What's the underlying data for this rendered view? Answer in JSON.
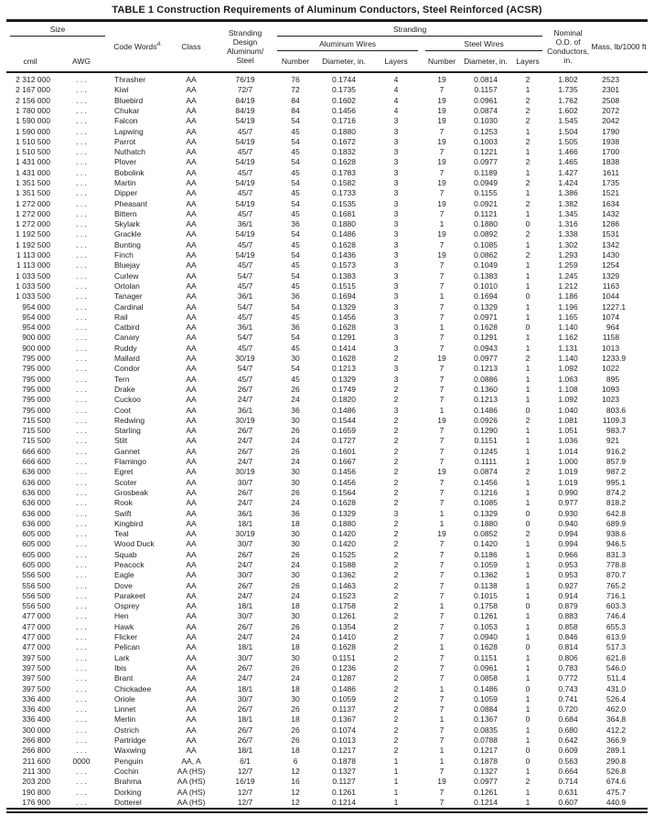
{
  "title": "TABLE 1 Construction Requirements of Aluminum Conductors, Steel Reinforced (ACSR)",
  "header": {
    "size": "Size",
    "cmil": "cmil",
    "awg": "AWG",
    "code_words": "Code Words",
    "code_words_sup": "A",
    "class_label": "Class",
    "stranding_design": "Stranding Design Aluminum/ Steel",
    "stranding": "Stranding",
    "aluminum_wires": "Aluminum Wires",
    "steel_wires": "Steel Wires",
    "number": "Number",
    "diameter": "Diameter, in.",
    "layers": "Layers",
    "nominal_od": "Nominal O.D. of Conductors, in.",
    "mass": "Mass, lb/1000 ft"
  },
  "rows": [
    [
      "2 312 000",
      ". . .",
      "Thrasher",
      "AA",
      "76/19",
      "76",
      "0.1744",
      "4",
      "19",
      "0.0814",
      "2",
      "1.802",
      "2523"
    ],
    [
      "2 167 000",
      ". . .",
      "Kiwi",
      "AA",
      "72/7",
      "72",
      "0.1735",
      "4",
      "7",
      "0.1157",
      "1",
      "1.735",
      "2301"
    ],
    [
      "2 156 000",
      ". . .",
      "Bluebird",
      "AA",
      "84/19",
      "84",
      "0.1602",
      "4",
      "19",
      "0.0961",
      "2",
      "1.762",
      "2508"
    ],
    [
      "1 780 000",
      ". . .",
      "Chukar",
      "AA",
      "84/19",
      "84",
      "0.1456",
      "4",
      "19",
      "0.0874",
      "2",
      "1.602",
      "2072"
    ],
    [
      "1 590 000",
      ". . .",
      "Falcon",
      "AA",
      "54/19",
      "54",
      "0.1716",
      "3",
      "19",
      "0.1030",
      "2",
      "1.545",
      "2042"
    ],
    [
      "1 590 000",
      ". . .",
      "Lapwing",
      "AA",
      "45/7",
      "45",
      "0.1880",
      "3",
      "7",
      "0.1253",
      "1",
      "1.504",
      "1790"
    ],
    [
      "1 510 500",
      ". . .",
      "Parrot",
      "AA",
      "54/19",
      "54",
      "0.1672",
      "3",
      "19",
      "0.1003",
      "2",
      "1.505",
      "1938"
    ],
    [
      "1 510 500",
      ". . .",
      "Nuthatch",
      "AA",
      "45/7",
      "45",
      "0.1832",
      "3",
      "7",
      "0.1221",
      "1",
      "1.466",
      "1700"
    ],
    [
      "1 431 000",
      ". . .",
      "Plover",
      "AA",
      "54/19",
      "54",
      "0.1628",
      "3",
      "19",
      "0.0977",
      "2",
      "1.465",
      "1838"
    ],
    [
      "1 431 000",
      ". . .",
      "Bobolink",
      "AA",
      "45/7",
      "45",
      "0.1783",
      "3",
      "7",
      "0.1189",
      "1",
      "1.427",
      "1611"
    ],
    [
      "1 351 500",
      ". . .",
      "Martin",
      "AA",
      "54/19",
      "54",
      "0.1582",
      "3",
      "19",
      "0.0949",
      "2",
      "1.424",
      "1735"
    ],
    [
      "1 351 500",
      ". . .",
      "Dipper",
      "AA",
      "45/7",
      "45",
      "0.1733",
      "3",
      "7",
      "0.1155",
      "1",
      "1.386",
      "1521"
    ],
    [
      "1 272 000",
      ". . .",
      "Pheasant",
      "AA",
      "54/19",
      "54",
      "0.1535",
      "3",
      "19",
      "0.0921",
      "2",
      "1.382",
      "1634"
    ],
    [
      "1 272 000",
      ". . .",
      "Bittern",
      "AA",
      "45/7",
      "45",
      "0.1681",
      "3",
      "7",
      "0.1121",
      "1",
      "1.345",
      "1432"
    ],
    [
      "1 272 000",
      ". . .",
      "Skylark",
      "AA",
      "36/1",
      "36",
      "0.1880",
      "3",
      "1",
      "0.1880",
      "0",
      "1.316",
      "1286"
    ],
    [
      "1 192 500",
      ". . .",
      "Grackle",
      "AA",
      "54/19",
      "54",
      "0.1486",
      "3",
      "19",
      "0.0892",
      "2",
      "1.338",
      "1531"
    ],
    [
      "1 192 500",
      ". . .",
      "Bunting",
      "AA",
      "45/7",
      "45",
      "0.1628",
      "3",
      "7",
      "0.1085",
      "1",
      "1.302",
      "1342"
    ],
    [
      "1 113 000",
      ". . .",
      "Finch",
      "AA",
      "54/19",
      "54",
      "0.1436",
      "3",
      "19",
      "0.0862",
      "2",
      "1.293",
      "1430"
    ],
    [
      "1 113 000",
      ". . .",
      "Bluejay",
      "AA",
      "45/7",
      "45",
      "0.1573",
      "3",
      "7",
      "0.1049",
      "1",
      "1.259",
      "1254"
    ],
    [
      "1 033 500",
      ". . .",
      "Curlew",
      "AA",
      "54/7",
      "54",
      "0.1383",
      "3",
      "7",
      "0.1383",
      "1",
      "1.245",
      "1329"
    ],
    [
      "1 033 500",
      ". . .",
      "Ortolan",
      "AA",
      "45/7",
      "45",
      "0.1515",
      "3",
      "7",
      "0.1010",
      "1",
      "1.212",
      "1163"
    ],
    [
      "1 033 500",
      ". . .",
      "Tanager",
      "AA",
      "36/1",
      "36",
      "0.1694",
      "3",
      "1",
      "0.1694",
      "0",
      "1.186",
      "1044"
    ],
    [
      "954 000",
      ". . .",
      "Cardinal",
      "AA",
      "54/7",
      "54",
      "0.1329",
      "3",
      "7",
      "0.1329",
      "1",
      "1.196",
      "1227.1"
    ],
    [
      "954 000",
      ". . .",
      "Rail",
      "AA",
      "45/7",
      "45",
      "0.1456",
      "3",
      "7",
      "0.0971",
      "1",
      "1.165",
      "1074"
    ],
    [
      "954 000",
      ". . .",
      "Catbird",
      "AA",
      "36/1",
      "36",
      "0.1628",
      "3",
      "1",
      "0.1628",
      "0",
      "1.140",
      "964"
    ],
    [
      "900 000",
      ". . .",
      "Canary",
      "AA",
      "54/7",
      "54",
      "0.1291",
      "3",
      "7",
      "0.1291",
      "1",
      "1.162",
      "1158"
    ],
    [
      "900 000",
      ". . .",
      "Ruddy",
      "AA",
      "45/7",
      "45",
      "0.1414",
      "3",
      "7",
      "0.0943",
      "1",
      "1.131",
      "1013"
    ],
    [
      "795 000",
      ". . .",
      "Mallard",
      "AA",
      "30/19",
      "30",
      "0.1628",
      "2",
      "19",
      "0.0977",
      "2",
      "1.140",
      "1233.9"
    ],
    [
      "795 000",
      ". . .",
      "Condor",
      "AA",
      "54/7",
      "54",
      "0.1213",
      "3",
      "7",
      "0.1213",
      "1",
      "1.092",
      "1022"
    ],
    [
      "795 000",
      ". . .",
      "Tern",
      "AA",
      "45/7",
      "45",
      "0.1329",
      "3",
      "7",
      "0.0886",
      "1",
      "1.063",
      "895"
    ],
    [
      "795 000",
      ". . .",
      "Drake",
      "AA",
      "26/7",
      "26",
      "0.1749",
      "2",
      "7",
      "0.1360",
      "1",
      "1.108",
      "1093"
    ],
    [
      "795 000",
      ". . .",
      "Cuckoo",
      "AA",
      "24/7",
      "24",
      "0.1820",
      "2",
      "7",
      "0.1213",
      "1",
      "1.092",
      "1023"
    ],
    [
      "795 000",
      ". . .",
      "Coot",
      "AA",
      "36/1",
      "36",
      "0.1486",
      "3",
      "1",
      "0.1486",
      "0",
      "1.040",
      "803.6"
    ],
    [
      "715 500",
      ". . .",
      "Redwing",
      "AA",
      "30/19",
      "30",
      "0.1544",
      "2",
      "19",
      "0.0926",
      "2",
      "1.081",
      "1109.3"
    ],
    [
      "715 500",
      ". . .",
      "Starling",
      "AA",
      "26/7",
      "26",
      "0.1659",
      "2",
      "7",
      "0.1290",
      "1",
      "1.051",
      "983.7"
    ],
    [
      "715 500",
      ". . .",
      "Stilt",
      "AA",
      "24/7",
      "24",
      "0.1727",
      "2",
      "7",
      "0.1151",
      "1",
      "1.036",
      "921"
    ],
    [
      "666 600",
      ". . .",
      "Gannet",
      "AA",
      "26/7",
      "26",
      "0.1601",
      "2",
      "7",
      "0.1245",
      "1",
      "1.014",
      "916.2"
    ],
    [
      "666 600",
      ". . .",
      "Flamingo",
      "AA",
      "24/7",
      "24",
      "0.1667",
      "2",
      "7",
      "0.1111",
      "1",
      "1.000",
      "857.9"
    ],
    [
      "636 000",
      ". . .",
      "Egret",
      "AA",
      "30/19",
      "30",
      "0.1456",
      "2",
      "19",
      "0.0874",
      "2",
      "1.019",
      "987.2"
    ],
    [
      "636 000",
      ". . .",
      "Scoter",
      "AA",
      "30/7",
      "30",
      "0.1456",
      "2",
      "7",
      "0.1456",
      "1",
      "1.019",
      "995.1"
    ],
    [
      "636 000",
      ". . .",
      "Grosbeak",
      "AA",
      "26/7",
      "26",
      "0.1564",
      "2",
      "7",
      "0.1216",
      "1",
      "0.990",
      "874.2"
    ],
    [
      "636 000",
      ". . .",
      "Rook",
      "AA",
      "24/7",
      "24",
      "0.1628",
      "2",
      "7",
      "0.1085",
      "1",
      "0.977",
      "818.2"
    ],
    [
      "636 000",
      ". . .",
      "Swift",
      "AA",
      "36/1",
      "36",
      "0.1329",
      "3",
      "1",
      "0.1329",
      "0",
      "0.930",
      "642.8"
    ],
    [
      "636 000",
      ". . .",
      "Kingbird",
      "AA",
      "18/1",
      "18",
      "0.1880",
      "2",
      "1",
      "0.1880",
      "0",
      "0.940",
      "689.9"
    ],
    [
      "605 000",
      ". . .",
      "Teal",
      "AA",
      "30/19",
      "30",
      "0.1420",
      "2",
      "19",
      "0.0852",
      "2",
      "0.994",
      "938.6"
    ],
    [
      "605 000",
      ". . .",
      "Wood Duck",
      "AA",
      "30/7",
      "30",
      "0.1420",
      "2",
      "7",
      "0.1420",
      "1",
      "0.994",
      "946.5"
    ],
    [
      "605 000",
      ". . .",
      "Squab",
      "AA",
      "26/7",
      "26",
      "0.1525",
      "2",
      "7",
      "0.1186",
      "1",
      "0.966",
      "831.3"
    ],
    [
      "605 000",
      ". . .",
      "Peacock",
      "AA",
      "24/7",
      "24",
      "0.1588",
      "2",
      "7",
      "0.1059",
      "1",
      "0.953",
      "778.8"
    ],
    [
      "556 500",
      ". . .",
      "Eagle",
      "AA",
      "30/7",
      "30",
      "0.1362",
      "2",
      "7",
      "0.1362",
      "1",
      "0.953",
      "870.7"
    ],
    [
      "556 500",
      ". . .",
      "Dove",
      "AA",
      "26/7",
      "26",
      "0.1463",
      "2",
      "7",
      "0.1138",
      "1",
      "0.927",
      "765.2"
    ],
    [
      "556 500",
      ". . .",
      "Parakeet",
      "AA",
      "24/7",
      "24",
      "0.1523",
      "2",
      "7",
      "0.1015",
      "1",
      "0.914",
      "716.1"
    ],
    [
      "556 500",
      ". . .",
      "Osprey",
      "AA",
      "18/1",
      "18",
      "0.1758",
      "2",
      "1",
      "0.1758",
      "0",
      "0.879",
      "603.3"
    ],
    [
      "477 000",
      ". . .",
      "Hen",
      "AA",
      "30/7",
      "30",
      "0.1261",
      "2",
      "7",
      "0.1261",
      "1",
      "0.883",
      "746.4"
    ],
    [
      "477 000",
      ". . .",
      "Hawk",
      "AA",
      "26/7",
      "26",
      "0.1354",
      "2",
      "7",
      "0.1053",
      "1",
      "0.858",
      "655.3"
    ],
    [
      "477 000",
      ". . .",
      "Flicker",
      "AA",
      "24/7",
      "24",
      "0.1410",
      "2",
      "7",
      "0.0940",
      "1",
      "0.846",
      "613.9"
    ],
    [
      "477 000",
      ". . .",
      "Pelican",
      "AA",
      "18/1",
      "18",
      "0.1628",
      "2",
      "1",
      "0.1628",
      "0",
      "0.814",
      "517.3"
    ],
    [
      "397 500",
      ". . .",
      "Lark",
      "AA",
      "30/7",
      "30",
      "0.1151",
      "2",
      "7",
      "0.1151",
      "1",
      "0.806",
      "621.8"
    ],
    [
      "397 500",
      ". . .",
      "Ibis",
      "AA",
      "26/7",
      "26",
      "0.1236",
      "2",
      "7",
      "0.0961",
      "1",
      "0.783",
      "546.0"
    ],
    [
      "397 500",
      ". . .",
      "Brant",
      "AA",
      "24/7",
      "24",
      "0.1287",
      "2",
      "7",
      "0.0858",
      "1",
      "0.772",
      "511.4"
    ],
    [
      "397 500",
      ". . .",
      "Chickadee",
      "AA",
      "18/1",
      "18",
      "0.1486",
      "2",
      "1",
      "0.1486",
      "0",
      "0.743",
      "431.0"
    ],
    [
      "336 400",
      ". . .",
      "Oriole",
      "AA",
      "30/7",
      "30",
      "0.1059",
      "2",
      "7",
      "0.1059",
      "1",
      "0.741",
      "526.4"
    ],
    [
      "336 400",
      ". . .",
      "Linnet",
      "AA",
      "26/7",
      "26",
      "0.1137",
      "2",
      "7",
      "0.0884",
      "1",
      "0.720",
      "462.0"
    ],
    [
      "336 400",
      ". . .",
      "Merlin",
      "AA",
      "18/1",
      "18",
      "0.1367",
      "2",
      "1",
      "0.1367",
      "0",
      "0.684",
      "364.8"
    ],
    [
      "300 000",
      ". . .",
      "Ostrich",
      "AA",
      "26/7",
      "26",
      "0.1074",
      "2",
      "7",
      "0.0835",
      "1",
      "0.680",
      "412.2"
    ],
    [
      "266 800",
      ". . .",
      "Partridge",
      "AA",
      "26/7",
      "26",
      "0.1013",
      "2",
      "7",
      "0.0788",
      "1",
      "0.642",
      "366.9"
    ],
    [
      "266 800",
      ". . .",
      "Waxwing",
      "AA",
      "18/1",
      "18",
      "0.1217",
      "2",
      "1",
      "0.1217",
      "0",
      "0.609",
      "289.1"
    ],
    [
      "211 600",
      "0000",
      "Penguin",
      "AA, A",
      "6/1",
      "6",
      "0.1878",
      "1",
      "1",
      "0.1878",
      "0",
      "0.563",
      "290.8"
    ],
    [
      "211 300",
      ". . .",
      "Cochin",
      "AA (HS)",
      "12/7",
      "12",
      "0.1327",
      "1",
      "7",
      "0.1327",
      "1",
      "0.664",
      "526.8"
    ],
    [
      "203 200",
      ". . .",
      "Brahma",
      "AA (HS)",
      "16/19",
      "16",
      "0.1127",
      "1",
      "19",
      "0.0977",
      "2",
      "0.714",
      "674.6"
    ],
    [
      "190 800",
      ". . .",
      "Dorking",
      "AA (HS)",
      "12/7",
      "12",
      "0.1261",
      "1",
      "7",
      "0.1261",
      "1",
      "0.631",
      "475.7"
    ],
    [
      "176 900",
      ". . .",
      "Dotterel",
      "AA (HS)",
      "12/7",
      "12",
      "0.1214",
      "1",
      "7",
      "0.1214",
      "1",
      "0.607",
      "440.9"
    ]
  ]
}
